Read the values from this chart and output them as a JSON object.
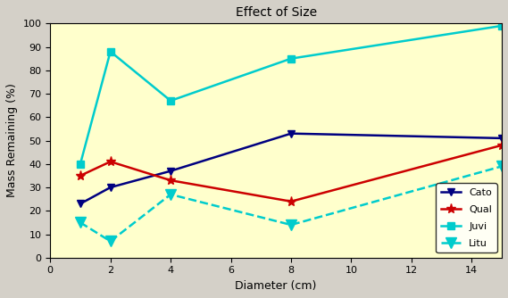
{
  "title": "Effect of Size",
  "xlabel": "Diameter (cm)",
  "ylabel": "Mass Remaining (%)",
  "xlim": [
    0,
    15
  ],
  "ylim": [
    0,
    100
  ],
  "xticks": [
    0,
    2,
    4,
    6,
    8,
    10,
    12,
    14
  ],
  "yticks": [
    0,
    10,
    20,
    30,
    40,
    50,
    60,
    70,
    80,
    90,
    100
  ],
  "x": [
    1,
    2,
    4,
    8,
    15
  ],
  "Cato": [
    23,
    30,
    37,
    53,
    51
  ],
  "Qual": [
    35,
    41,
    33,
    24,
    48
  ],
  "Juvi": [
    40,
    88,
    67,
    85,
    99
  ],
  "Litu": [
    15,
    7,
    27,
    14,
    39
  ],
  "Cato_color": "#000080",
  "Qual_color": "#cc0000",
  "Juvi_color": "#00cccc",
  "Litu_color": "#00cccc",
  "bg_color": "#ffffcc",
  "plot_bg": "#ffffcc",
  "legend_labels": [
    "Cato",
    "Qual",
    "Juvi",
    "Litu"
  ]
}
